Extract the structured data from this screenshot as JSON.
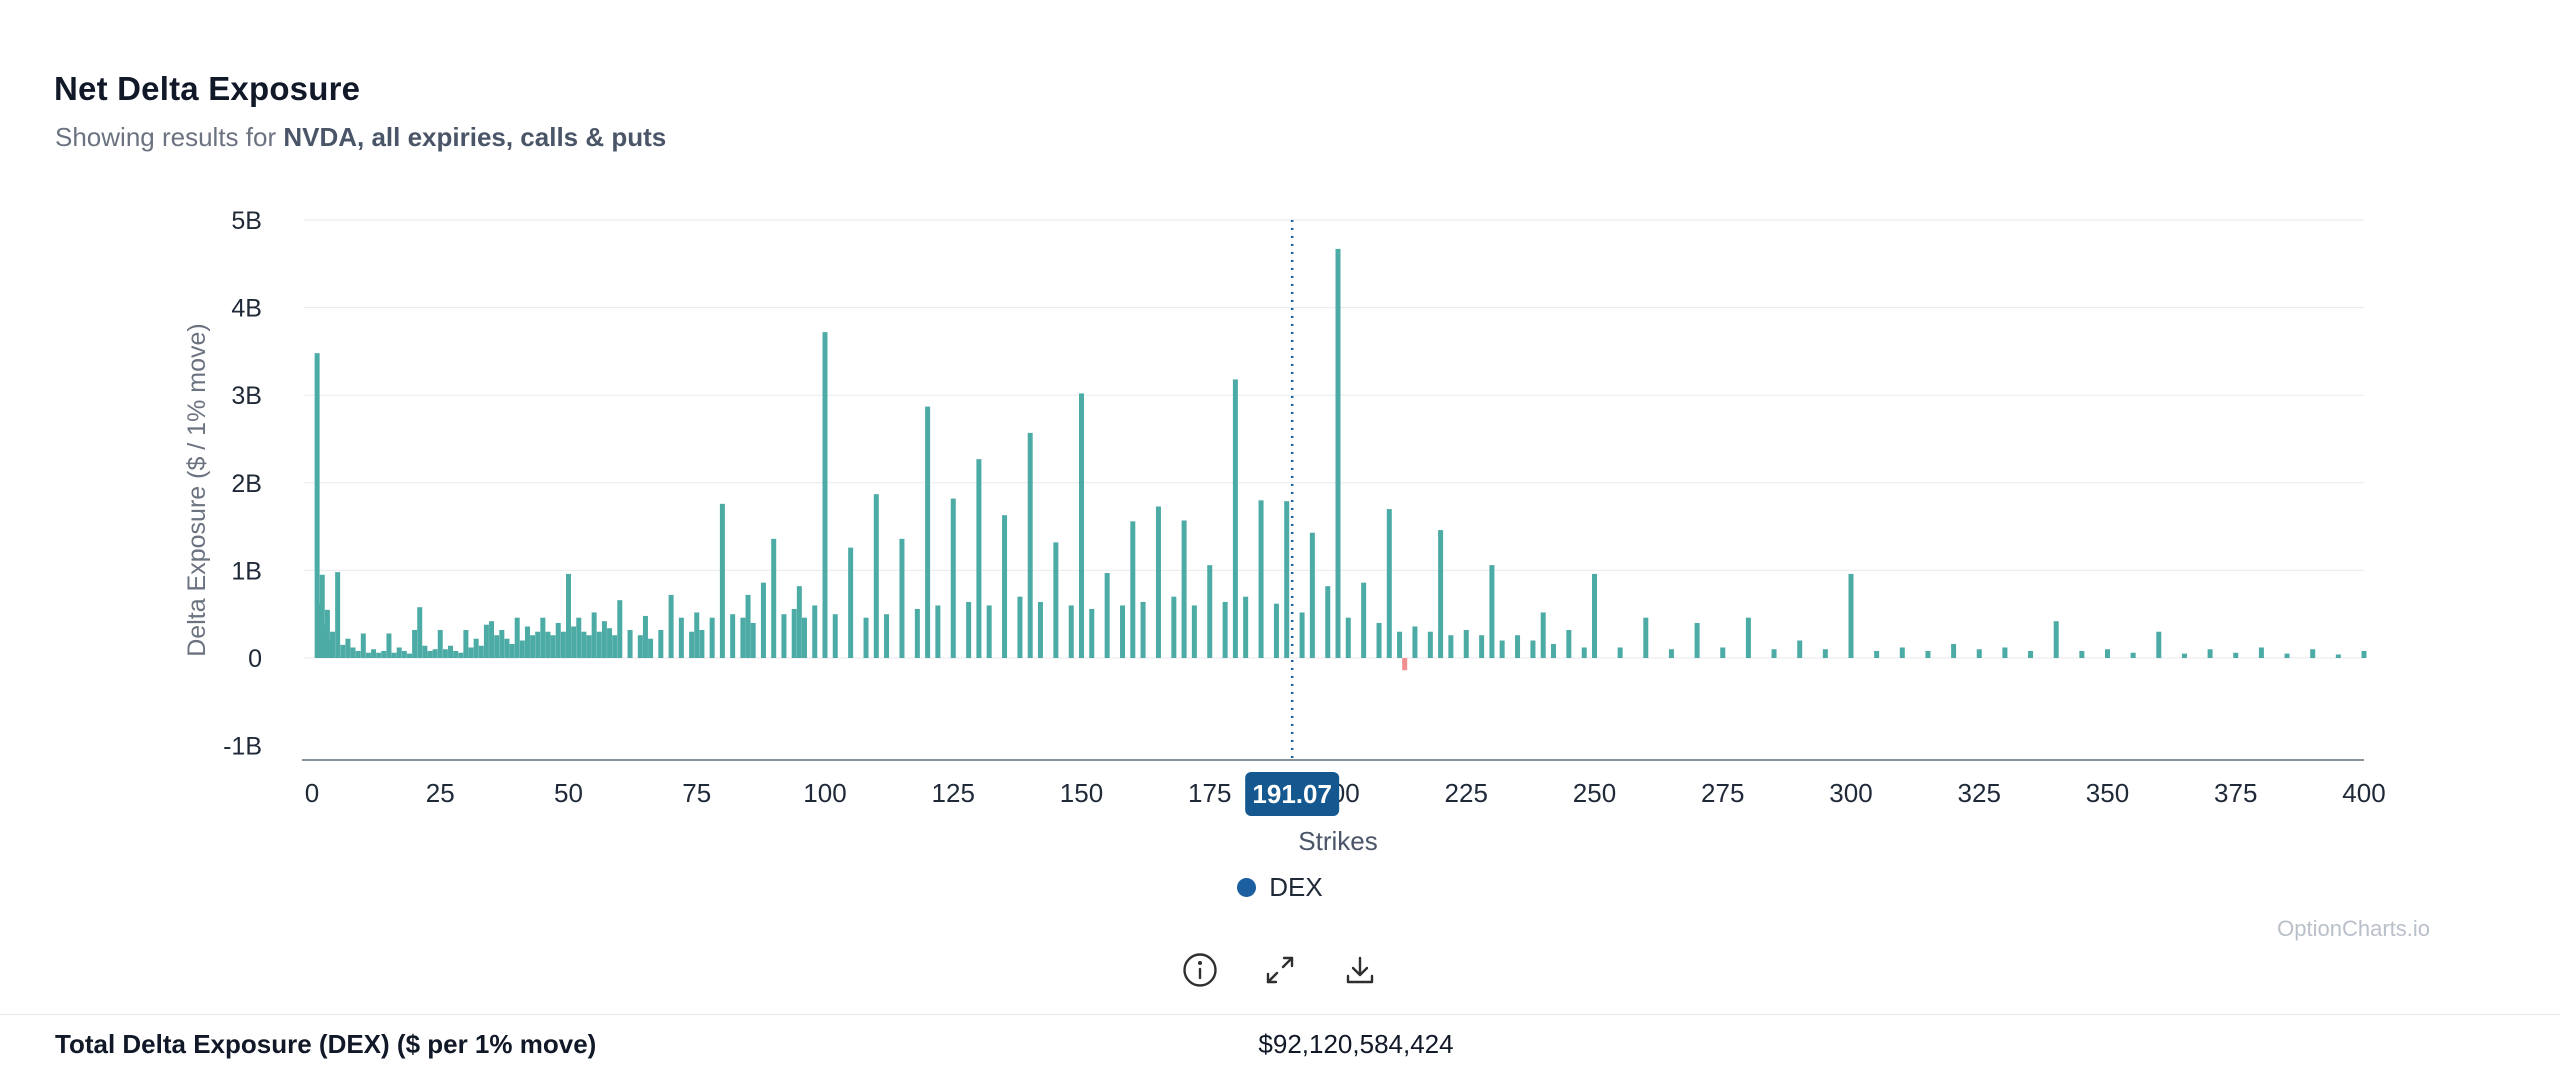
{
  "header": {
    "title": "Net Delta Exposure",
    "subtitle_prefix": "Showing results for ",
    "subtitle_bold": "NVDA, all expiries, calls & puts"
  },
  "watermark": "OptionCharts.io",
  "toolbar": {
    "icons": [
      "info-circle-icon",
      "expand-arrows-icon",
      "download-tray-icon"
    ]
  },
  "footer": {
    "label": "Total Delta Exposure (DEX) ($ per 1% move)",
    "value": "$92,120,584,424"
  },
  "chart_data": {
    "type": "bar",
    "title": "Net Delta Exposure",
    "xlabel": "Strikes",
    "ylabel": "Delta Exposure ($ / 1% move)",
    "unit": "billions of $ per 1% move",
    "xlim": [
      0,
      400
    ],
    "ylim": [
      -1.16,
      5
    ],
    "grid": "horizontal",
    "legend_position": "bottom-center",
    "x_ticks": [
      0,
      25,
      50,
      75,
      100,
      125,
      150,
      175,
      200,
      225,
      250,
      275,
      300,
      325,
      350,
      375,
      400
    ],
    "y_ticks": [
      {
        "v": 5,
        "label": "5B"
      },
      {
        "v": 4,
        "label": "4B"
      },
      {
        "v": 3,
        "label": "3B"
      },
      {
        "v": 2,
        "label": "2B"
      },
      {
        "v": 1,
        "label": "1B"
      },
      {
        "v": 0,
        "label": "0"
      },
      {
        "v": -1,
        "label": "-1B"
      }
    ],
    "price_line": {
      "value": 191.07,
      "label": "191.07",
      "color": "#1b5f9e",
      "badge_color": "#14588f"
    },
    "bar_color": "#4caba5",
    "negative_bar_color": "#ef8f8f",
    "legend": [
      {
        "label": "DEX",
        "color": "#1b5fa0"
      }
    ],
    "series": [
      {
        "name": "DEX",
        "points": [
          [
            1,
            3.48
          ],
          [
            1.5,
            0.62
          ],
          [
            2,
            0.95
          ],
          [
            2.5,
            0.38
          ],
          [
            3,
            0.55
          ],
          [
            3.5,
            0.2
          ],
          [
            4,
            0.3
          ],
          [
            5,
            0.98
          ],
          [
            6,
            0.15
          ],
          [
            7,
            0.22
          ],
          [
            8,
            0.12
          ],
          [
            9,
            0.08
          ],
          [
            10,
            0.28
          ],
          [
            11,
            0.06
          ],
          [
            12,
            0.1
          ],
          [
            13,
            0.06
          ],
          [
            14,
            0.08
          ],
          [
            15,
            0.28
          ],
          [
            16,
            0.06
          ],
          [
            17,
            0.12
          ],
          [
            18,
            0.08
          ],
          [
            19,
            0.05
          ],
          [
            20,
            0.32
          ],
          [
            21,
            0.58
          ],
          [
            22,
            0.14
          ],
          [
            23,
            0.08
          ],
          [
            24,
            0.1
          ],
          [
            25,
            0.32
          ],
          [
            26,
            0.1
          ],
          [
            27,
            0.14
          ],
          [
            28,
            0.08
          ],
          [
            29,
            0.06
          ],
          [
            30,
            0.32
          ],
          [
            31,
            0.12
          ],
          [
            32,
            0.22
          ],
          [
            33,
            0.14
          ],
          [
            34,
            0.38
          ],
          [
            35,
            0.42
          ],
          [
            36,
            0.26
          ],
          [
            37,
            0.32
          ],
          [
            38,
            0.22
          ],
          [
            39,
            0.16
          ],
          [
            40,
            0.46
          ],
          [
            41,
            0.2
          ],
          [
            42,
            0.36
          ],
          [
            43,
            0.26
          ],
          [
            44,
            0.3
          ],
          [
            45,
            0.46
          ],
          [
            46,
            0.3
          ],
          [
            47,
            0.26
          ],
          [
            48,
            0.4
          ],
          [
            49,
            0.3
          ],
          [
            50,
            0.96
          ],
          [
            51,
            0.36
          ],
          [
            52,
            0.46
          ],
          [
            53,
            0.3
          ],
          [
            54,
            0.26
          ],
          [
            55,
            0.52
          ],
          [
            56,
            0.3
          ],
          [
            57,
            0.42
          ],
          [
            58,
            0.34
          ],
          [
            59,
            0.26
          ],
          [
            60,
            0.66
          ],
          [
            62,
            0.32
          ],
          [
            64,
            0.26
          ],
          [
            65,
            0.48
          ],
          [
            66,
            0.22
          ],
          [
            68,
            0.32
          ],
          [
            70,
            0.72
          ],
          [
            72,
            0.46
          ],
          [
            74,
            0.3
          ],
          [
            75,
            0.52
          ],
          [
            76,
            0.32
          ],
          [
            78,
            0.46
          ],
          [
            80,
            1.76
          ],
          [
            82,
            0.5
          ],
          [
            84,
            0.46
          ],
          [
            85,
            0.72
          ],
          [
            86,
            0.4
          ],
          [
            88,
            0.86
          ],
          [
            90,
            1.36
          ],
          [
            92,
            0.5
          ],
          [
            94,
            0.56
          ],
          [
            95,
            0.82
          ],
          [
            96,
            0.46
          ],
          [
            98,
            0.6
          ],
          [
            100,
            3.72
          ],
          [
            102,
            0.5
          ],
          [
            105,
            1.26
          ],
          [
            108,
            0.46
          ],
          [
            110,
            1.87
          ],
          [
            112,
            0.5
          ],
          [
            115,
            1.36
          ],
          [
            118,
            0.56
          ],
          [
            120,
            2.87
          ],
          [
            122,
            0.6
          ],
          [
            125,
            1.82
          ],
          [
            128,
            0.64
          ],
          [
            130,
            2.27
          ],
          [
            132,
            0.6
          ],
          [
            135,
            1.63
          ],
          [
            138,
            0.7
          ],
          [
            140,
            2.57
          ],
          [
            142,
            0.64
          ],
          [
            145,
            1.32
          ],
          [
            148,
            0.6
          ],
          [
            150,
            3.02
          ],
          [
            152,
            0.56
          ],
          [
            155,
            0.97
          ],
          [
            158,
            0.6
          ],
          [
            160,
            1.56
          ],
          [
            162,
            0.64
          ],
          [
            165,
            1.73
          ],
          [
            168,
            0.7
          ],
          [
            170,
            1.57
          ],
          [
            172,
            0.6
          ],
          [
            175,
            1.06
          ],
          [
            178,
            0.64
          ],
          [
            180,
            3.18
          ],
          [
            182,
            0.7
          ],
          [
            185,
            1.8
          ],
          [
            188,
            0.62
          ],
          [
            190,
            1.79
          ],
          [
            193,
            0.52
          ],
          [
            195,
            1.43
          ],
          [
            198,
            0.82
          ],
          [
            200,
            4.67
          ],
          [
            202,
            0.46
          ],
          [
            205,
            0.86
          ],
          [
            208,
            0.4
          ],
          [
            210,
            1.7
          ],
          [
            212,
            0.3
          ],
          [
            213,
            -0.14
          ],
          [
            215,
            0.36
          ],
          [
            218,
            0.3
          ],
          [
            220,
            1.46
          ],
          [
            222,
            0.26
          ],
          [
            225,
            0.32
          ],
          [
            228,
            0.26
          ],
          [
            230,
            1.06
          ],
          [
            232,
            0.2
          ],
          [
            235,
            0.26
          ],
          [
            238,
            0.2
          ],
          [
            240,
            0.52
          ],
          [
            242,
            0.16
          ],
          [
            245,
            0.32
          ],
          [
            248,
            0.12
          ],
          [
            250,
            0.96
          ],
          [
            255,
            0.12
          ],
          [
            260,
            0.46
          ],
          [
            265,
            0.1
          ],
          [
            270,
            0.4
          ],
          [
            275,
            0.12
          ],
          [
            280,
            0.46
          ],
          [
            285,
            0.1
          ],
          [
            290,
            0.2
          ],
          [
            295,
            0.1
          ],
          [
            300,
            0.96
          ],
          [
            305,
            0.08
          ],
          [
            310,
            0.12
          ],
          [
            315,
            0.08
          ],
          [
            320,
            0.16
          ],
          [
            325,
            0.1
          ],
          [
            330,
            0.12
          ],
          [
            335,
            0.08
          ],
          [
            340,
            0.42
          ],
          [
            345,
            0.08
          ],
          [
            350,
            0.1
          ],
          [
            355,
            0.06
          ],
          [
            360,
            0.3
          ],
          [
            365,
            0.05
          ],
          [
            370,
            0.1
          ],
          [
            375,
            0.06
          ],
          [
            380,
            0.12
          ],
          [
            385,
            0.05
          ],
          [
            390,
            0.1
          ],
          [
            395,
            0.04
          ],
          [
            400,
            0.08
          ]
        ]
      }
    ]
  }
}
